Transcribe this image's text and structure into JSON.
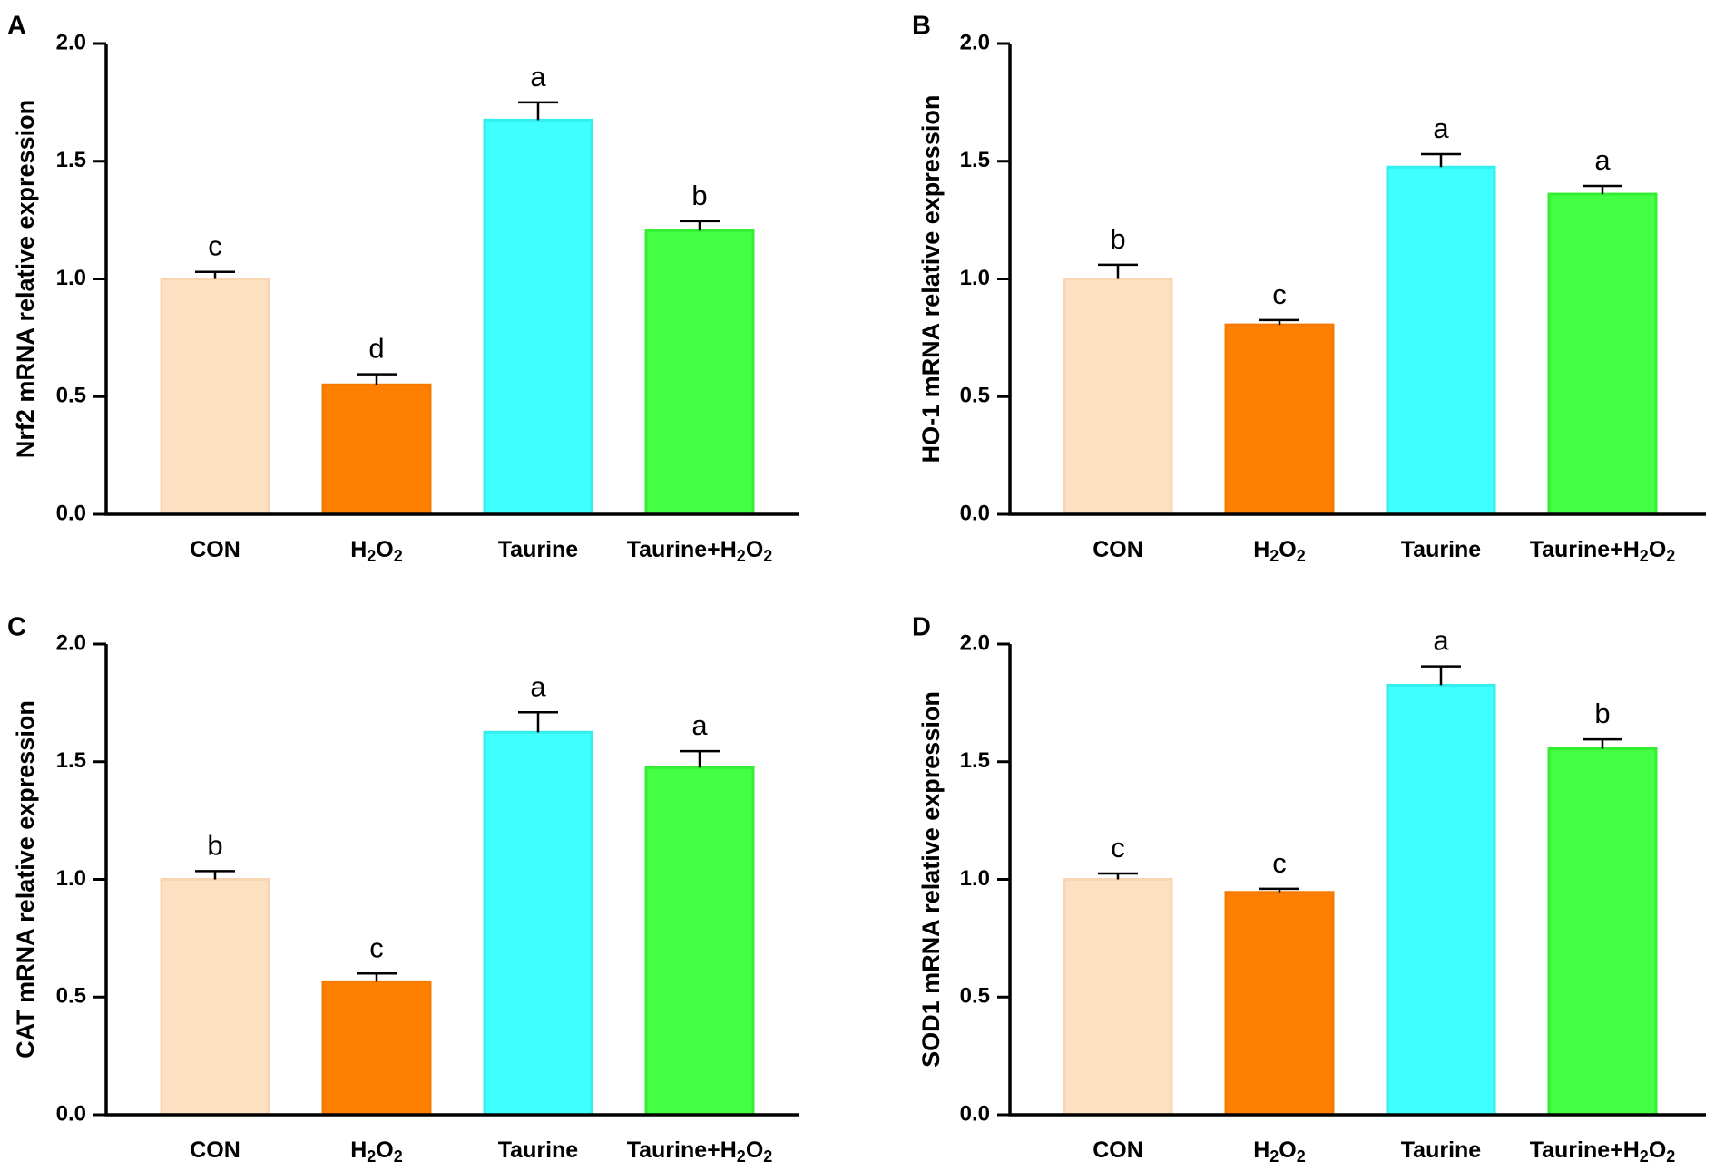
{
  "chart_data": [
    {
      "panel": "A",
      "type": "bar",
      "ylabel": "Nrf2 mRNA relative expression",
      "xlabel": "",
      "categories": [
        {
          "text": "CON"
        },
        {
          "text": "H",
          "sub1": "2",
          "mid": "O",
          "sub2": "2"
        },
        {
          "text": "Taurine"
        },
        {
          "text": "Taurine+H",
          "sub1": "2",
          "mid": "O",
          "sub2": "2"
        }
      ],
      "values": [
        1.0,
        0.55,
        1.675,
        1.205
      ],
      "errors": [
        0.03,
        0.045,
        0.075,
        0.04
      ],
      "significance": [
        "c",
        "d",
        "a",
        "b"
      ],
      "ylim": [
        0,
        2.0
      ],
      "yticks": [
        "0.0",
        "0.5",
        "1.0",
        "1.5",
        "2.0"
      ],
      "grid": false
    },
    {
      "panel": "B",
      "type": "bar",
      "ylabel": "HO-1 mRNA relative expression",
      "xlabel": "",
      "categories": [
        {
          "text": "CON"
        },
        {
          "text": "H",
          "sub1": "2",
          "mid": "O",
          "sub2": "2"
        },
        {
          "text": "Taurine"
        },
        {
          "text": "Taurine+H",
          "sub1": "2",
          "mid": "O",
          "sub2": "2"
        }
      ],
      "values": [
        1.0,
        0.805,
        1.475,
        1.36
      ],
      "errors": [
        0.06,
        0.02,
        0.055,
        0.035
      ],
      "significance": [
        "b",
        "c",
        "a",
        "a"
      ],
      "ylim": [
        0,
        2.0
      ],
      "yticks": [
        "0.0",
        "0.5",
        "1.0",
        "1.5",
        "2.0"
      ],
      "grid": false
    },
    {
      "panel": "C",
      "type": "bar",
      "ylabel": "CAT mRNA relative expression",
      "xlabel": "",
      "categories": [
        {
          "text": "CON"
        },
        {
          "text": "H",
          "sub1": "2",
          "mid": "O",
          "sub2": "2"
        },
        {
          "text": "Taurine"
        },
        {
          "text": "Taurine+H",
          "sub1": "2",
          "mid": "O",
          "sub2": "2"
        }
      ],
      "values": [
        1.0,
        0.565,
        1.625,
        1.475
      ],
      "errors": [
        0.035,
        0.035,
        0.085,
        0.07
      ],
      "significance": [
        "b",
        "c",
        "a",
        "a"
      ],
      "ylim": [
        0,
        2.0
      ],
      "yticks": [
        "0.0",
        "0.5",
        "1.0",
        "1.5",
        "2.0"
      ],
      "grid": false
    },
    {
      "panel": "D",
      "type": "bar",
      "ylabel": "SOD1 mRNA relative expression",
      "xlabel": "",
      "categories": [
        {
          "text": "CON"
        },
        {
          "text": "H",
          "sub1": "2",
          "mid": "O",
          "sub2": "2"
        },
        {
          "text": "Taurine"
        },
        {
          "text": "Taurine+H",
          "sub1": "2",
          "mid": "O",
          "sub2": "2"
        }
      ],
      "values": [
        1.0,
        0.945,
        1.825,
        1.555
      ],
      "errors": [
        0.025,
        0.015,
        0.08,
        0.04
      ],
      "significance": [
        "c",
        "c",
        "a",
        "b"
      ],
      "ylim": [
        0,
        2.0
      ],
      "yticks": [
        "0.0",
        "0.5",
        "1.0",
        "1.5",
        "2.0"
      ],
      "grid": false
    }
  ],
  "colors": {
    "bars": [
      "#FDE0C2",
      "#FF8000",
      "#3FFFFF",
      "#44FF44"
    ],
    "bar_edges": [
      "#F8D6B4",
      "#F57B00",
      "#34EDED",
      "#33EE33"
    ],
    "axis": "#000000"
  }
}
